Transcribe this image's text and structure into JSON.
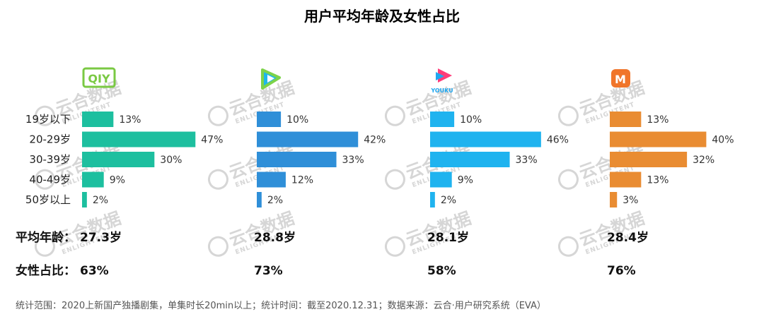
{
  "chart_data": {
    "type": "bar",
    "title": "用户平均年龄及女性占比",
    "categories": [
      "19岁以下",
      "20-29岁",
      "30-39岁",
      "40-49岁",
      "50岁以上"
    ],
    "xlim": [
      0,
      50
    ],
    "series": [
      {
        "name": "iQIYI",
        "color": "#1dbf9f",
        "values": [
          13,
          47,
          30,
          9,
          2
        ],
        "avg_age": "27.3岁",
        "female_ratio": "63%"
      },
      {
        "name": "腾讯视频",
        "color": "#2f8fd8",
        "values": [
          10,
          42,
          33,
          12,
          2
        ],
        "avg_age": "28.8岁",
        "female_ratio": "73%"
      },
      {
        "name": "YOUKU",
        "color": "#1fb3ef",
        "values": [
          10,
          46,
          33,
          9,
          2
        ],
        "avg_age": "28.1岁",
        "female_ratio": "58%"
      },
      {
        "name": "芒果TV",
        "color": "#e98c32",
        "values": [
          13,
          40,
          32,
          13,
          3
        ],
        "avg_age": "28.4岁",
        "female_ratio": "76%"
      }
    ],
    "value_suffix": "%"
  },
  "labels": {
    "avg_age": "平均年龄：",
    "female_ratio": "女性占比："
  },
  "footnote": "统计范围：2020上新国产独播剧集，单集时长20min以上；统计时间：截至2020.12.31；数据来源：云合·用户研究系统（EVA）",
  "logos": {
    "iqiyi": "QIY",
    "youku": "YOUKU",
    "mango": "M"
  },
  "watermark": {
    "text": "云合数据",
    "sub": "ENLIGHTENT"
  },
  "colors": {
    "iqiyi_logo": "#7ac943",
    "tencent_logo_a": "#1fb7ea",
    "tencent_logo_b": "#7dd34a",
    "youku_logo_a": "#ff3c7a",
    "youku_logo_b": "#1fa7f0",
    "mango_logo": "#f0752a",
    "watermark": "#d6d6d6"
  }
}
